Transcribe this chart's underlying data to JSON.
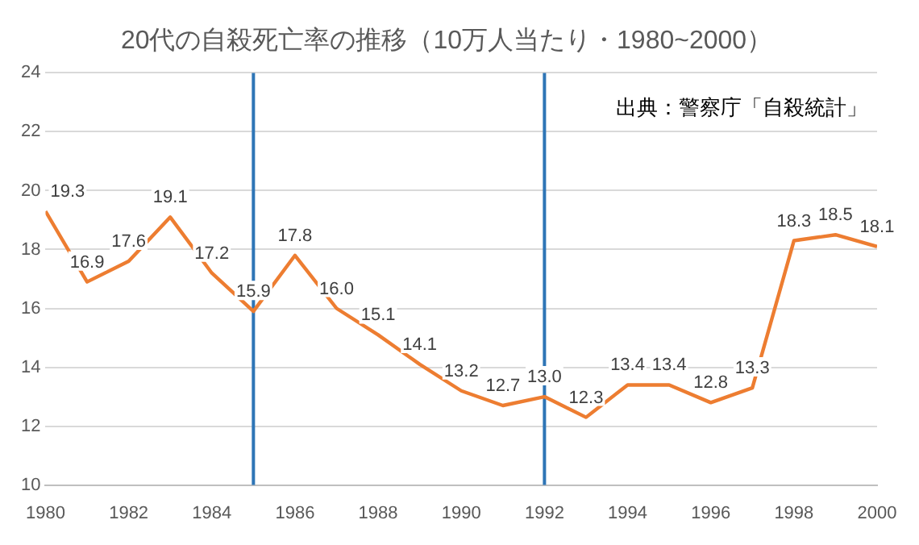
{
  "chart_data": {
    "type": "line",
    "title": "20代の自殺死亡率の推移（10万人当たり・1980~2000）",
    "x": [
      1980,
      1981,
      1982,
      1983,
      1984,
      1985,
      1986,
      1987,
      1988,
      1989,
      1990,
      1991,
      1992,
      1993,
      1994,
      1995,
      1996,
      1997,
      1998,
      1999,
      2000
    ],
    "series": [
      {
        "color": "#ed7d31",
        "values": [
          19.3,
          16.9,
          17.6,
          19.1,
          17.2,
          15.9,
          17.8,
          16.0,
          15.1,
          14.1,
          13.2,
          12.7,
          13.0,
          12.3,
          13.4,
          13.4,
          12.8,
          13.3,
          18.3,
          18.5,
          18.1
        ]
      }
    ],
    "value_labels": [
      "19.3",
      "16.9",
      "17.6",
      "19.1",
      "17.2",
      "15.9",
      "17.8",
      "16.0",
      "15.1",
      "14.1",
      "13.2",
      "12.7",
      "13.0",
      "12.3",
      "13.4",
      "13.4",
      "12.8",
      "13.3",
      "18.3",
      "18.5",
      "18.1"
    ],
    "xlim": [
      1980,
      2000
    ],
    "xticks": [
      1980,
      1982,
      1984,
      1986,
      1988,
      1990,
      1992,
      1994,
      1996,
      1998,
      2000
    ],
    "ylim": [
      10,
      24
    ],
    "yticks": [
      10,
      12,
      14,
      16,
      18,
      20,
      22,
      24
    ],
    "ref_lines": [
      {
        "axis": "x",
        "value": 1985,
        "color": "#2e75b6"
      },
      {
        "axis": "x",
        "value": 1992,
        "color": "#2e75b6"
      }
    ],
    "annotations": [
      "出典：警察庁「自殺統計」"
    ],
    "grid": "y",
    "legend": false,
    "marker": "none",
    "line_style": "solid"
  }
}
